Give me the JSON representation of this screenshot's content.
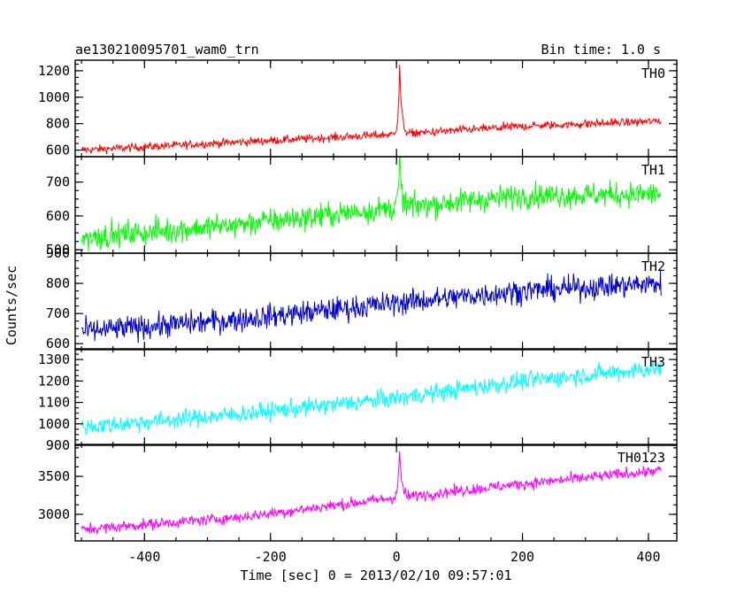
{
  "header": {
    "title": "ae130210095701_wam0_trn",
    "bin_time": "Bin time: 1.0 s"
  },
  "chart_data": {
    "type": "line",
    "title": "ae130210095701_wam0_trn",
    "subtitle": "Bin time: 1.0 s",
    "xlabel": "Time [sec] 0 = 2013/02/10 09:57:01",
    "ylabel": "Counts/sec",
    "xlim": [
      -510,
      445
    ],
    "x_ticks": [
      -400,
      -200,
      0,
      200,
      400
    ],
    "x_range_data": [
      -500,
      420
    ],
    "grid": false,
    "legend": "none",
    "panels": [
      {
        "name": "TH0",
        "color": "#ff0000",
        "ylim": [
          550,
          1280
        ],
        "y_ticks": [
          600,
          800,
          1000,
          1200
        ],
        "baseline": [
          [
            -500,
            600
          ],
          [
            -250,
            660
          ],
          [
            0,
            720
          ],
          [
            200,
            780
          ],
          [
            420,
            820
          ]
        ],
        "noise": 30,
        "burst": {
          "peak_time": 5,
          "peak_value": 1280,
          "rise_level": 1050
        }
      },
      {
        "name": "TH1",
        "color": "#00ff00",
        "ylim": [
          490,
          775
        ],
        "y_ticks": [
          500,
          600,
          700
        ],
        "baseline": [
          [
            -500,
            535
          ],
          [
            -250,
            575
          ],
          [
            0,
            625
          ],
          [
            200,
            660
          ],
          [
            420,
            665
          ]
        ],
        "noise": 35,
        "burst": {
          "peak_time": 5,
          "peak_value": 775,
          "rise_level": 730
        }
      },
      {
        "name": "TH2",
        "color": "#0000cc",
        "ylim": [
          580,
          900
        ],
        "y_ticks": [
          600,
          700,
          800,
          900
        ],
        "baseline": [
          [
            -500,
            640
          ],
          [
            -250,
            680
          ],
          [
            0,
            735
          ],
          [
            200,
            775
          ],
          [
            420,
            800
          ]
        ],
        "noise": 38,
        "burst": null
      },
      {
        "name": "TH3",
        "color": "#00ffff",
        "ylim": [
          900,
          1350
        ],
        "y_ticks": [
          900,
          1000,
          1100,
          1200,
          1300
        ],
        "baseline": [
          [
            -500,
            985
          ],
          [
            -250,
            1045
          ],
          [
            0,
            1120
          ],
          [
            200,
            1200
          ],
          [
            420,
            1260
          ]
        ],
        "noise": 40,
        "burst": null
      },
      {
        "name": "TH0123",
        "color": "#ff00ff",
        "ylim": [
          2650,
          3920
        ],
        "y_ticks": [
          3000,
          3500
        ],
        "baseline": [
          [
            -500,
            2800
          ],
          [
            -250,
            2960
          ],
          [
            0,
            3220
          ],
          [
            200,
            3400
          ],
          [
            420,
            3580
          ]
        ],
        "noise": 70,
        "burst": {
          "peak_time": 5,
          "peak_value": 3920,
          "rise_level": 3600
        }
      }
    ]
  }
}
